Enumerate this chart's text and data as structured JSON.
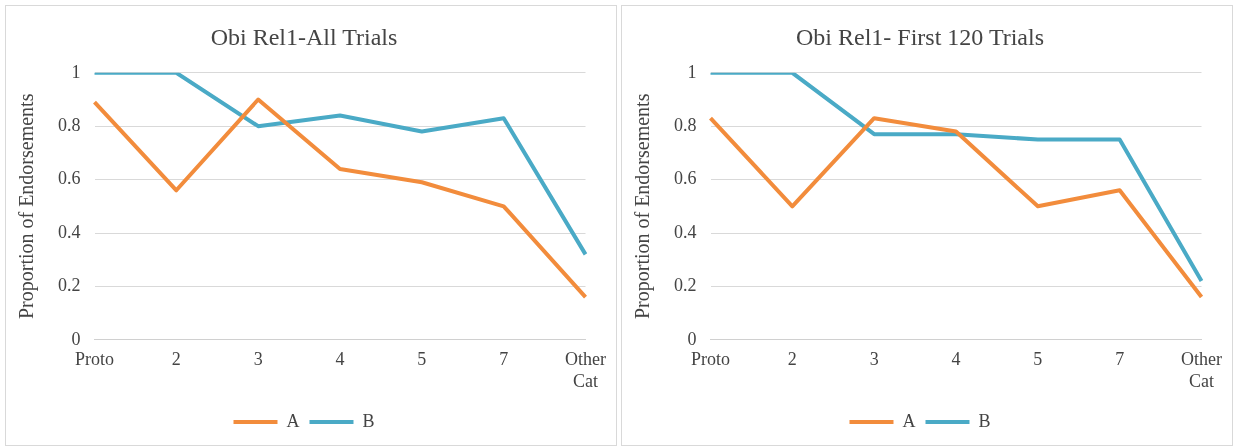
{
  "chart_data": [
    {
      "type": "line",
      "title": "Obi Rel1-All Trials",
      "ylabel": "Proportion of Endorsements",
      "categories": [
        "Proto",
        "2",
        "3",
        "4",
        "5",
        "7",
        "Other Cat"
      ],
      "ylim": [
        0,
        1
      ],
      "yticks": [
        0,
        0.2,
        0.4,
        0.6,
        0.8,
        1
      ],
      "grid": "y",
      "legend": "bottom",
      "marker": "none",
      "series": [
        {
          "name": "A",
          "color": "#f28c3c",
          "values": [
            0.89,
            0.56,
            0.9,
            0.64,
            0.59,
            0.5,
            0.16
          ]
        },
        {
          "name": "B",
          "color": "#4aaac6",
          "values": [
            1,
            1,
            0.8,
            0.84,
            0.78,
            0.83,
            0.32
          ]
        }
      ]
    },
    {
      "type": "line",
      "title": "Obi Rel1- First 120 Trials",
      "ylabel": "Proportion of Endorsements",
      "categories": [
        "Proto",
        "2",
        "3",
        "4",
        "5",
        "7",
        "Other Cat"
      ],
      "ylim": [
        0,
        1
      ],
      "yticks": [
        0,
        0.2,
        0.4,
        0.6,
        0.8,
        1
      ],
      "grid": "y",
      "legend": "bottom",
      "marker": "none",
      "series": [
        {
          "name": "A",
          "color": "#f28c3c",
          "values": [
            0.83,
            0.5,
            0.83,
            0.78,
            0.5,
            0.56,
            0.16
          ]
        },
        {
          "name": "B",
          "color": "#4aaac6",
          "values": [
            1,
            1,
            0.77,
            0.77,
            0.75,
            0.75,
            0.22
          ]
        }
      ]
    }
  ]
}
